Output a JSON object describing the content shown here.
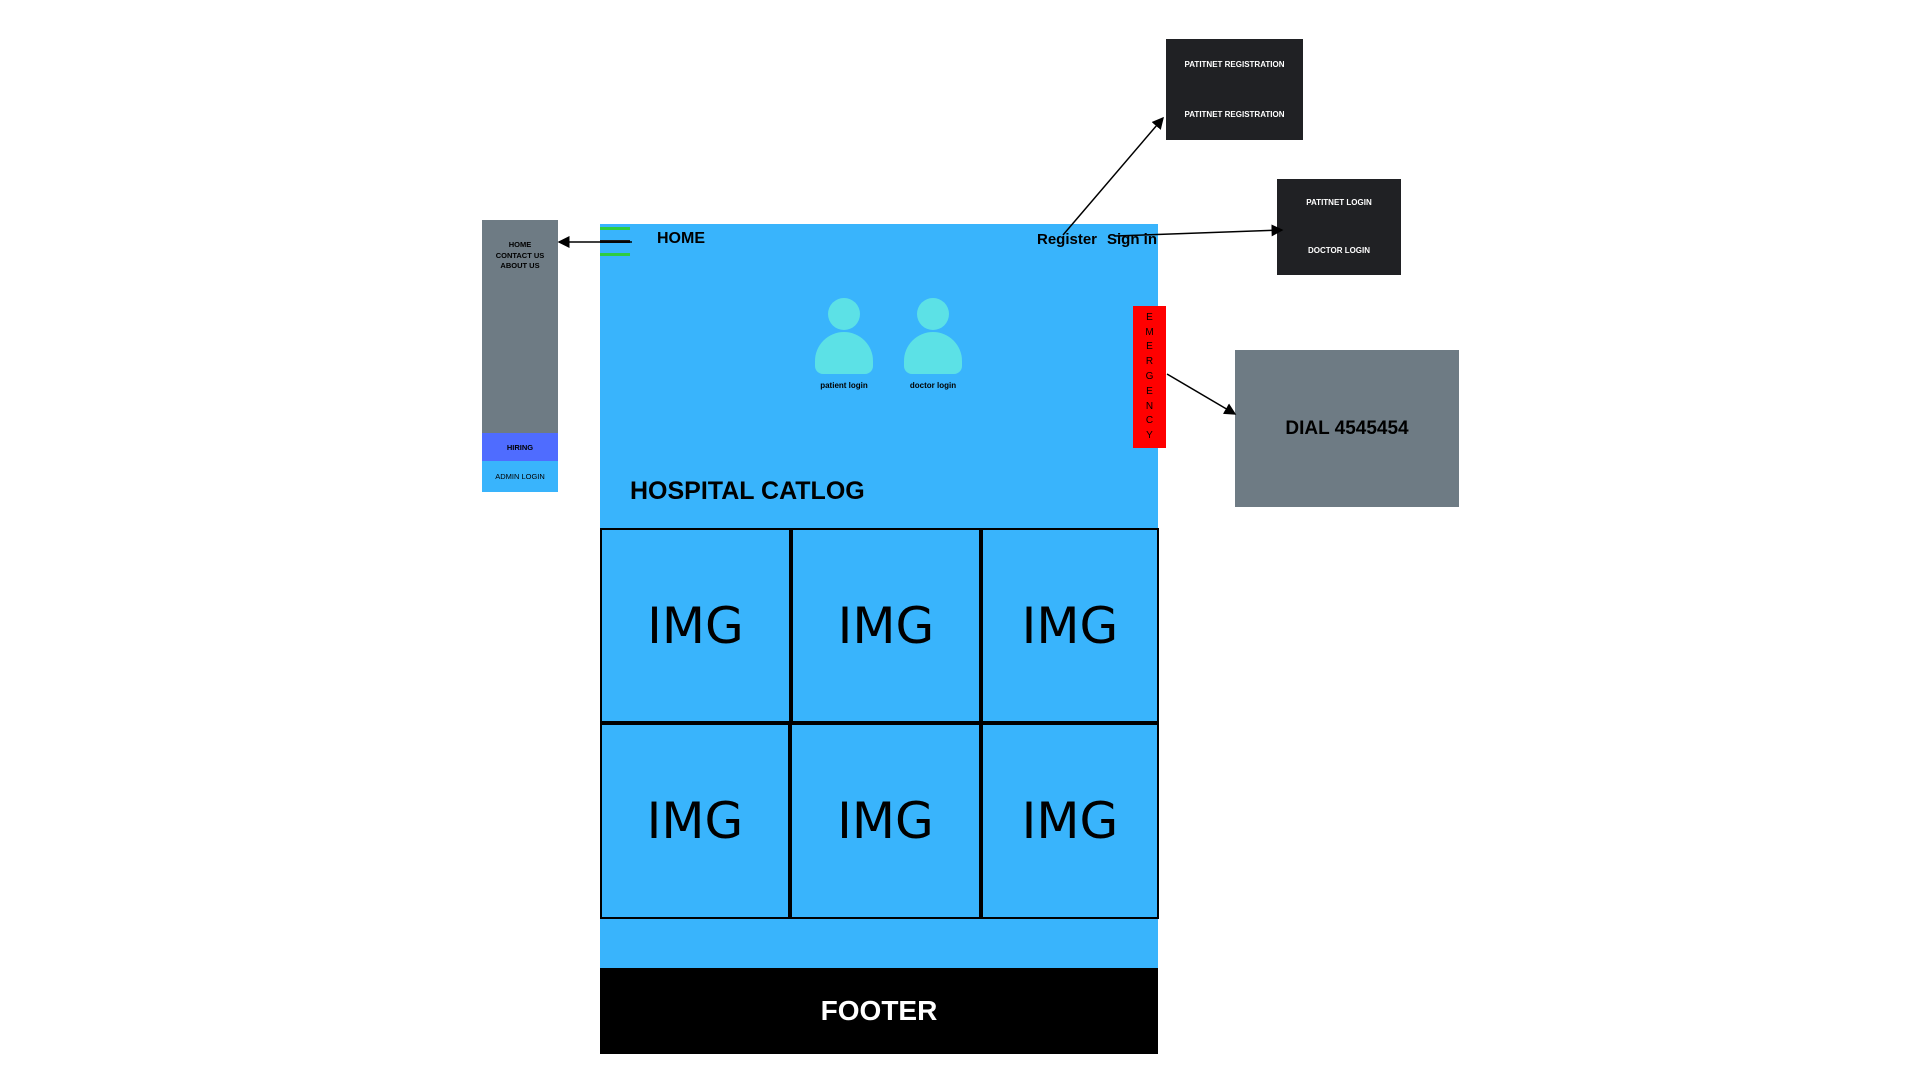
{
  "header": {
    "home_label": "HOME",
    "register_label": "Register",
    "signin_label": "Sign in"
  },
  "logins": [
    {
      "label": "patient login",
      "icon": "person-icon"
    },
    {
      "label": "doctor login",
      "icon": "person-icon"
    }
  ],
  "emergency": {
    "letters": [
      "E",
      "M",
      "E",
      "R",
      "G",
      "E",
      "N",
      "C",
      "Y"
    ]
  },
  "catalog": {
    "title": "HOSPITAL CATLOG",
    "images": [
      "IMG",
      "IMG",
      "IMG",
      "IMG",
      "IMG",
      "IMG"
    ]
  },
  "footer": {
    "label": "FOOTER"
  },
  "drawer": {
    "links": [
      "HOME",
      "CONTACT US",
      "ABOUT US"
    ],
    "hiring_label": "HIRING",
    "admin_label": "ADMIN LOGIN"
  },
  "register_popup": {
    "items": [
      "PATITNET REGISTRATION",
      "PATITNET REGISTRATION"
    ]
  },
  "signin_popup": {
    "items": [
      "PATITNET LOGIN",
      "DOCTOR LOGIN"
    ]
  },
  "emergency_popup": {
    "text": "DIAL  4545454"
  },
  "colors": {
    "page_bg": "#39b4fc",
    "drawer_bg": "#6e7b84",
    "hiring_bg": "#4f6cff",
    "emergency_bg": "#ff0000",
    "avatar": "#5ce1e6",
    "popup_dark": "#202124",
    "menu_accent": "#2ecc40"
  }
}
